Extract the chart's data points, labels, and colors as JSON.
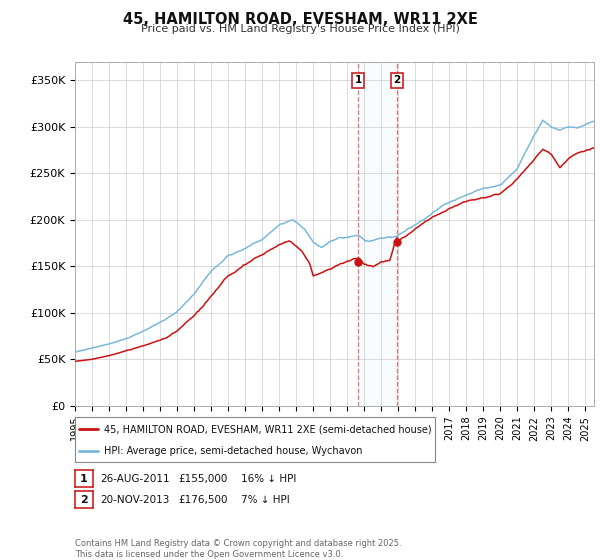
{
  "title": "45, HAMILTON ROAD, EVESHAM, WR11 2XE",
  "subtitle": "Price paid vs. HM Land Registry's House Price Index (HPI)",
  "ylabel_ticks": [
    "£0",
    "£50K",
    "£100K",
    "£150K",
    "£200K",
    "£250K",
    "£300K",
    "£350K"
  ],
  "ylim": [
    0,
    370000
  ],
  "xlim_start": 1995.0,
  "xlim_end": 2025.5,
  "hpi_color": "#7ab8d9",
  "price_color": "#cc1111",
  "marker1_x": 2011.65,
  "marker2_x": 2013.9,
  "marker1_price": 155000,
  "marker2_price": 176500,
  "legend_label1": "45, HAMILTON ROAD, EVESHAM, WR11 2XE (semi-detached house)",
  "legend_label2": "HPI: Average price, semi-detached house, Wychavon",
  "note1_date": "26-AUG-2011",
  "note1_price": "£155,000",
  "note1_hpi": "16% ↓ HPI",
  "note2_date": "20-NOV-2013",
  "note2_price": "£176,500",
  "note2_hpi": "7% ↓ HPI",
  "footer": "Contains HM Land Registry data © Crown copyright and database right 2025.\nThis data is licensed under the Open Government Licence v3.0.",
  "background_color": "#ffffff",
  "grid_color": "#cccccc"
}
